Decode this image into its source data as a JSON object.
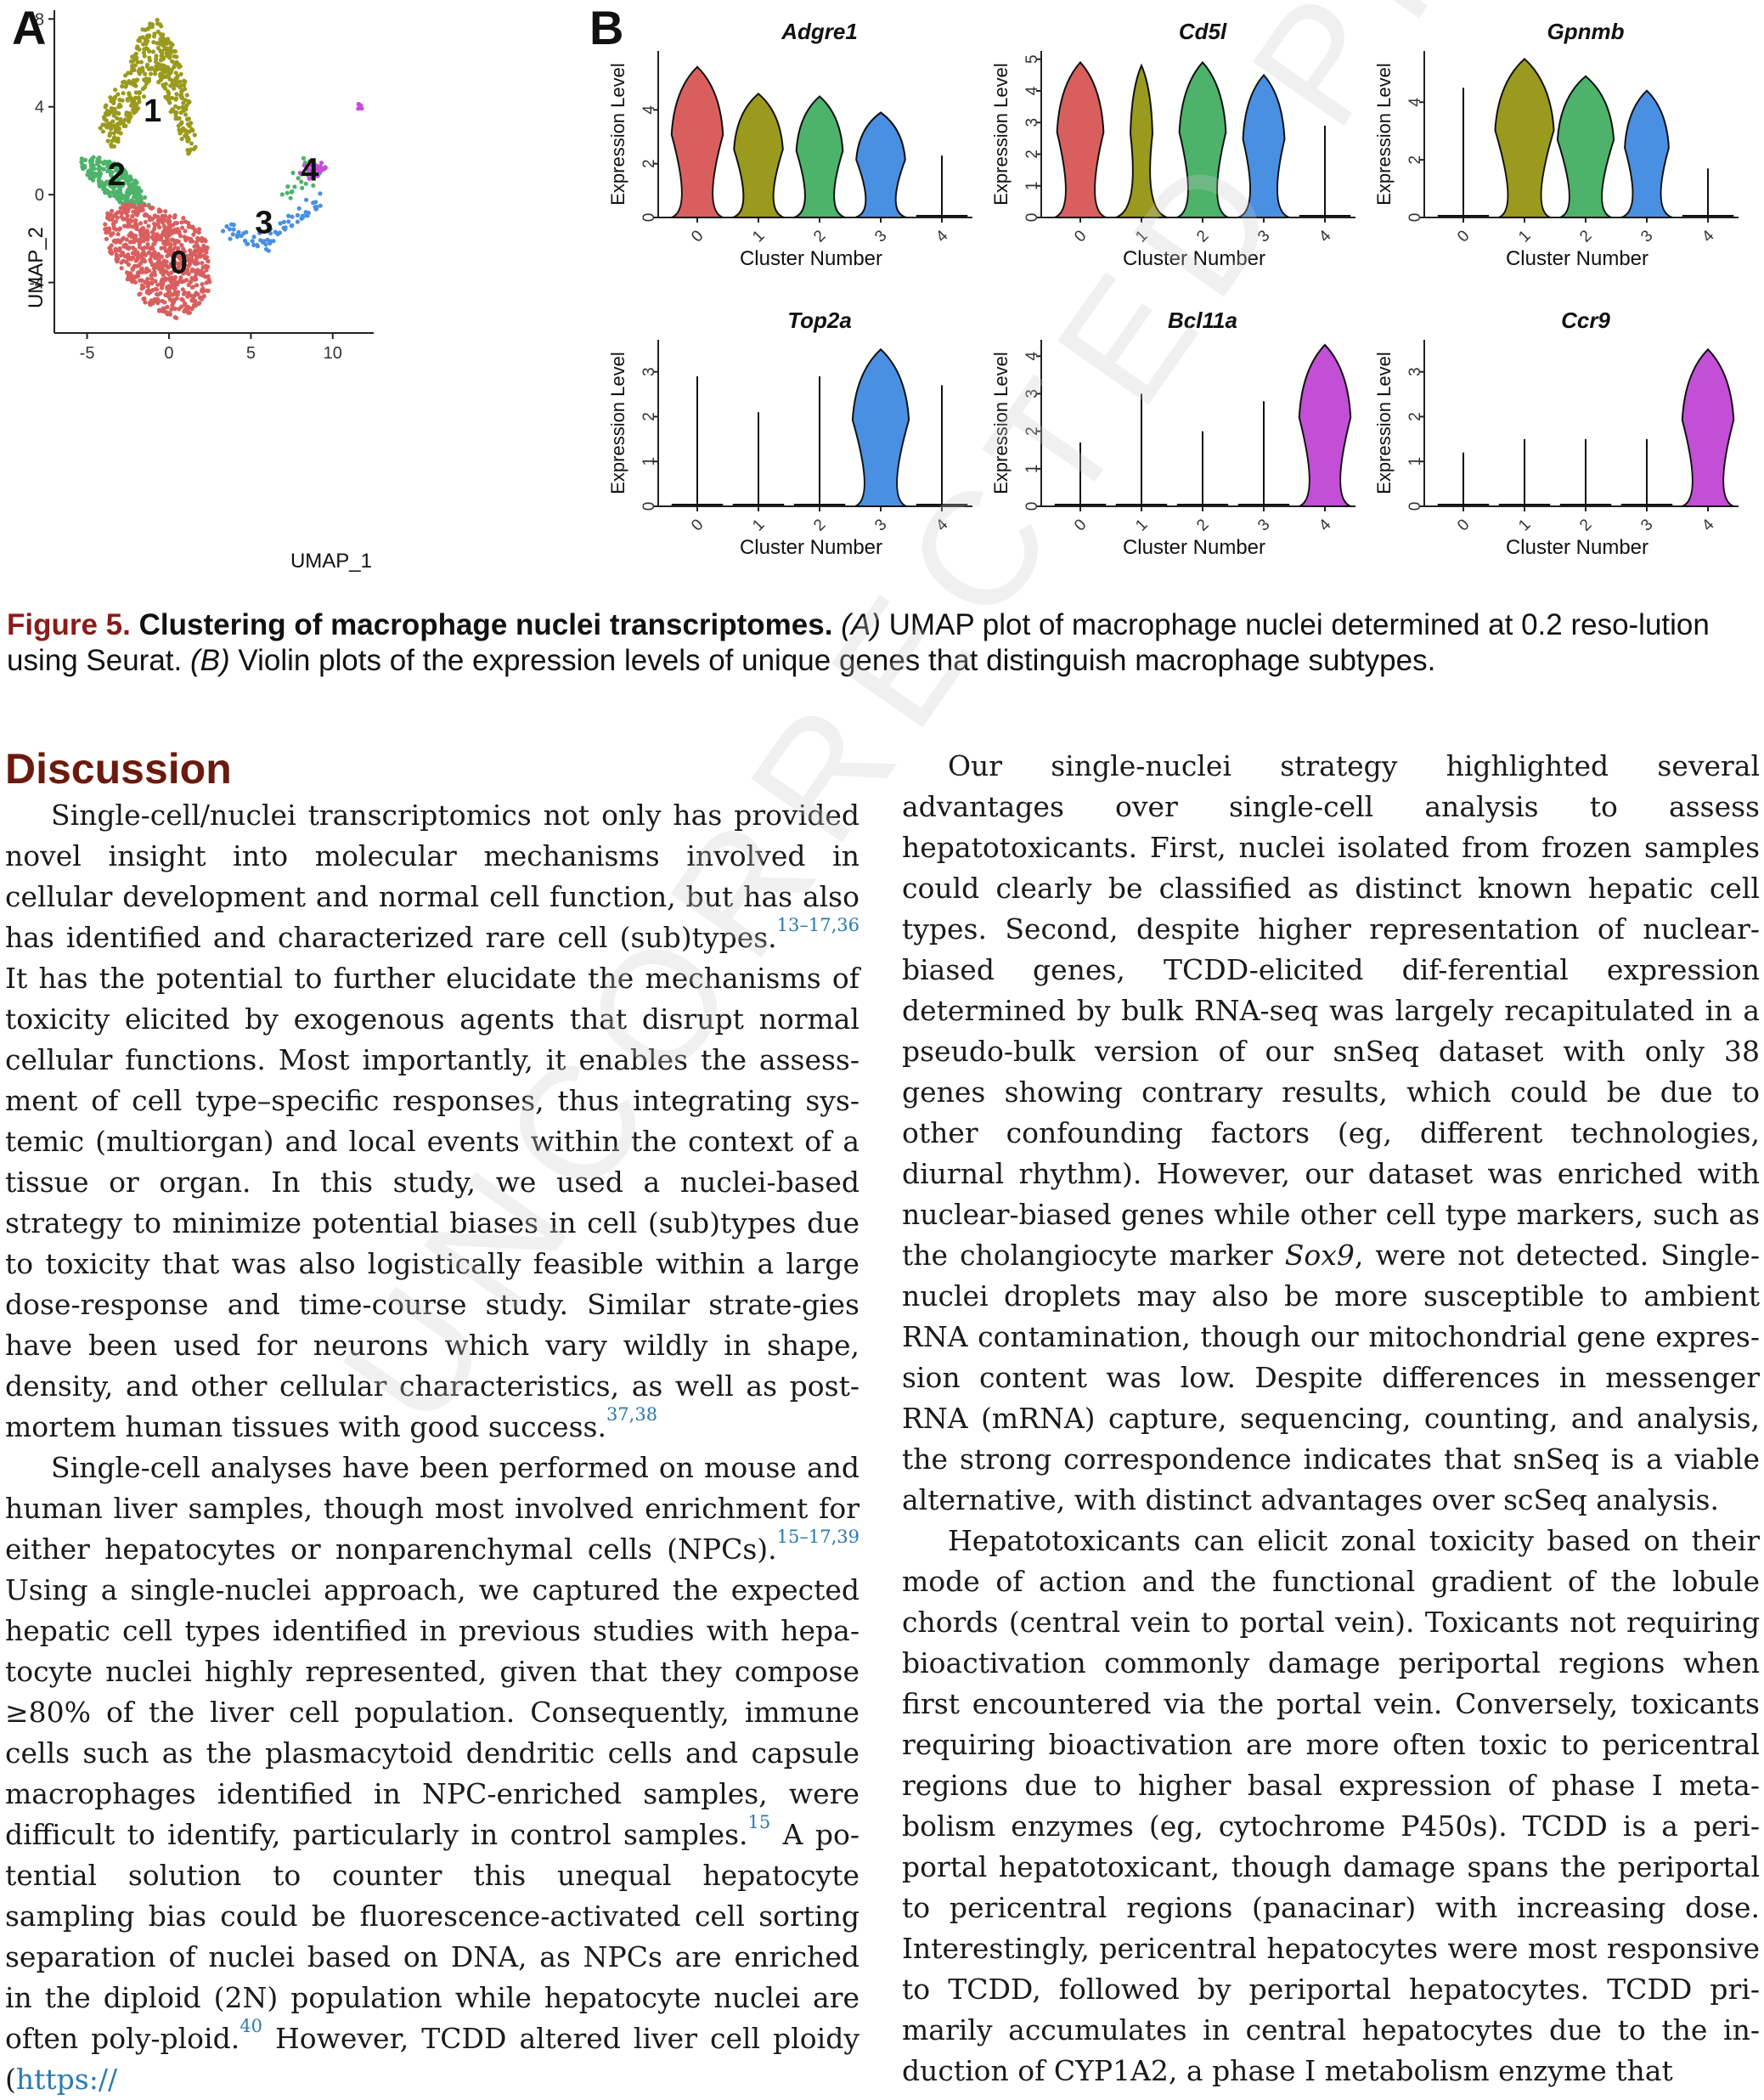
{
  "figure": {
    "panel_labels": [
      "A",
      "B"
    ],
    "umap": {
      "xlabel": "UMAP_1",
      "ylabel": "UMAP_2",
      "xticks": [
        "-5",
        "0",
        "5",
        "10"
      ],
      "yticks": [
        "8",
        "4",
        "0",
        "-4"
      ],
      "cluster_labels": [
        "0",
        "1",
        "2",
        "3",
        "4"
      ]
    },
    "violin_axis": {
      "ylabel": "Expression Level",
      "xlabel": "Cluster Number",
      "categories": [
        "0",
        "1",
        "2",
        "3",
        "4"
      ]
    }
  },
  "chart_data": [
    {
      "type": "scatter",
      "title": "",
      "xlabel": "UMAP_1",
      "ylabel": "UMAP_2",
      "xlim": [
        -7,
        12.5
      ],
      "ylim": [
        -6.3,
        8.4
      ],
      "grid": false,
      "clusters": [
        {
          "name": "0",
          "color": "#d95f5f",
          "center": [
            0.4,
            -3.2
          ]
        },
        {
          "name": "1",
          "color": "#9a9a1e",
          "center": [
            -1.5,
            4.0
          ]
        },
        {
          "name": "2",
          "color": "#4db36b",
          "center": [
            -3.5,
            0.8
          ]
        },
        {
          "name": "3",
          "color": "#4a90e2",
          "center": [
            5.6,
            -2.0
          ]
        },
        {
          "name": "4",
          "color": "#c24fd6",
          "center": [
            8.8,
            1.1
          ]
        }
      ]
    },
    {
      "type": "violin",
      "title": "Adgre1",
      "xlabel": "Cluster Number",
      "ylabel": "Expression Level",
      "categories": [
        "0",
        "1",
        "2",
        "3",
        "4"
      ],
      "ylim": [
        0,
        6
      ],
      "yticks": [
        0,
        2,
        4
      ],
      "max_values": [
        5.6,
        4.6,
        4.5,
        3.9,
        2.3
      ]
    },
    {
      "type": "violin",
      "title": "Cd5l",
      "xlabel": "Cluster Number",
      "ylabel": "Expression Level",
      "categories": [
        "0",
        "1",
        "2",
        "3",
        "4"
      ],
      "ylim": [
        0,
        5.1
      ],
      "yticks": [
        0,
        1,
        2,
        3,
        4,
        5
      ],
      "max_values": [
        4.9,
        4.8,
        4.9,
        4.5,
        2.9
      ]
    },
    {
      "type": "violin",
      "title": "Gpnmb",
      "xlabel": "Cluster Number",
      "ylabel": "Expression Level",
      "categories": [
        "0",
        "1",
        "2",
        "3",
        "4"
      ],
      "ylim": [
        0,
        5.6
      ],
      "yticks": [
        0,
        2,
        4
      ],
      "max_values": [
        4.5,
        5.5,
        4.9,
        4.4,
        1.7
      ]
    },
    {
      "type": "violin",
      "title": "Top2a",
      "xlabel": "Cluster Number",
      "ylabel": "Expression Level",
      "categories": [
        "0",
        "1",
        "2",
        "3",
        "4"
      ],
      "ylim": [
        0,
        3.6
      ],
      "yticks": [
        0,
        1,
        2,
        3
      ],
      "max_values": [
        2.9,
        2.1,
        2.9,
        3.5,
        2.7
      ]
    },
    {
      "type": "violin",
      "title": "Bcl11a",
      "xlabel": "Cluster Number",
      "ylabel": "Expression Level",
      "categories": [
        "0",
        "1",
        "2",
        "3",
        "4"
      ],
      "ylim": [
        0,
        4.3
      ],
      "yticks": [
        0,
        1,
        2,
        3,
        4
      ],
      "max_values": [
        1.7,
        3.0,
        2.0,
        2.8,
        4.3
      ]
    },
    {
      "type": "violin",
      "title": "Ccr9",
      "xlabel": "Cluster Number",
      "ylabel": "Expression Level",
      "categories": [
        "0",
        "1",
        "2",
        "3",
        "4"
      ],
      "ylim": [
        0,
        3.6
      ],
      "yticks": [
        0,
        1,
        2,
        3
      ],
      "max_values": [
        1.2,
        1.5,
        1.5,
        1.5,
        3.5
      ]
    }
  ],
  "caption": {
    "label": "Figure 5.",
    "title": "Clustering of macrophage nuclei transcriptomes.",
    "text_a_label": "(A)",
    "text_a": "UMAP plot of macrophage nuclei determined at 0.2 reso-lution using Seurat.",
    "text_b_label": "(B)",
    "text_b": "Violin plots of the expression levels of unique genes that distinguish macrophage subtypes."
  },
  "discussion": {
    "heading": "Discussion",
    "left_p1_a": "Single-cell/nuclei transcriptomics not only has provided novel insight into molecular mechanisms involved in cellular development and normal cell function, but has also has identified and characterized rare cell (sub)types.",
    "left_p1_sup1": "13–17,36",
    "left_p1_b": "It has the potential to further elucidate the mechanisms of toxicity elicited by exogenous agents that disrupt normal cellular functions. Most importantly, it enables the assess-ment of cell type–specific responses, thus integrating sys-temic (multiorgan) and local events within the context of a tissue or organ. In this study, we used a nuclei-based strategy to minimize potential biases in cell (sub)types due to toxicity that was also logistically feasible within a large dose-response and time-course study. Similar strate-gies have been used for neurons which vary wildly in shape, density, and other cellular characteristics, as well as post-mortem human tissues with good success.",
    "left_p1_sup2": "37,38",
    "left_p2_a": "Single-cell analyses have been performed on mouse and human liver samples, though most involved enrichment for either hepatocytes or nonparenchymal cells (NPCs).",
    "left_p2_sup1": "15–17,39",
    "left_p2_b": "Using a single-nuclei approach, we captured the expected hepatic cell types identified in previous studies with hepa-tocyte nuclei highly represented, given that they compose ≥80% of the liver cell population. Consequently, immune cells such as the plasmacytoid dendritic cells and capsule macrophages identified in NPC-enriched samples, were difficult to identify, particularly in control samples.",
    "left_p2_sup2": "15",
    "left_p2_c": "A po-tential solution to counter this unequal hepatocyte sampling bias could be fluorescence-activated cell sorting separation of nuclei based on DNA, as NPCs are enriched in the diploid (2N) population while hepatocyte nuclei are often poly-ploid.",
    "left_p2_sup3": "40",
    "left_p2_d": "However, TCDD altered liver cell ploidy (",
    "left_p2_link": "https://",
    "right_p1_a": "Our single-nuclei strategy highlighted several advantages over single-cell analysis to assess hepatotoxicants. First, nuclei isolated from frozen samples could clearly be classified as distinct known hepatic cell types. Second, despite higher representation of nuclear-biased genes, TCDD-elicited dif-ferential expression determined by bulk RNA-seq was largely recapitulated in a pseudo-bulk version of our snSeq dataset with only 38 genes showing contrary results, which could be due to other confounding factors (eg, different technologies, diurnal rhythm). However, our dataset was enriched with nuclear-biased genes while other cell type markers, such as the cholangiocyte marker",
    "right_p1_italic": "Sox9",
    "right_p1_b": ", were not detected. Single-nuclei droplets may also be more susceptible to ambient RNA contamination, though our mitochondrial gene expres-sion content was low. Despite differences in messenger RNA (mRNA) capture, sequencing, counting, and analysis, the strong correspondence indicates that snSeq is a viable alternative, with distinct advantages over scSeq analysis.",
    "right_p2": "Hepatotoxicants can elicit zonal toxicity based on their mode of action and the functional gradient of the lobule chords (central vein to portal vein). Toxicants not requiring bioactivation commonly damage periportal regions when first encountered via the portal vein. Conversely, toxicants requiring bioactivation are more often toxic to pericentral regions due to higher basal expression of phase I meta-bolism enzymes (eg, cytochrome P450s). TCDD is a peri-portal hepatotoxicant, though damage spans the periportal to pericentral regions (panacinar) with increasing dose. Interestingly, pericentral hepatocytes were most responsive to TCDD, followed by periportal hepatocytes. TCDD pri-marily accumulates in central hepatocytes due to the in-duction of CYP1A2, a phase I metabolism enzyme that"
  },
  "watermark": "UNCORRECTED PROOF",
  "colors": {
    "cluster0": "#d95f5f",
    "cluster1": "#9a9a1e",
    "cluster2": "#4db36b",
    "cluster3": "#4a90e2",
    "cluster4": "#c24fd6",
    "heading": "#6b1a0e",
    "link": "#2a7ab0"
  }
}
